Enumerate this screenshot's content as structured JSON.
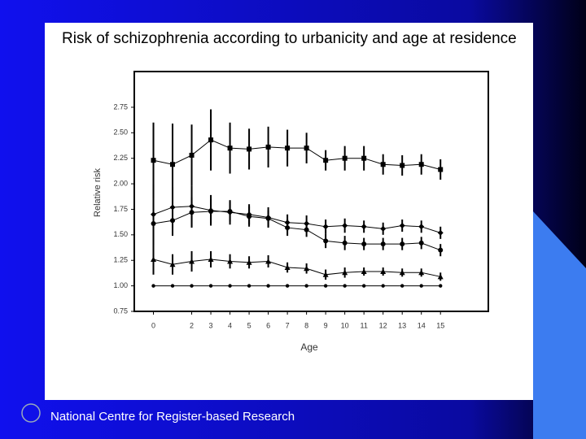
{
  "chart_data": {
    "type": "line",
    "title": "Risk of schizophrenia according to urbanicity and age at residence",
    "x_label": "Age",
    "y_label": "Relative risk",
    "footer": "National Centre for Register-based Research",
    "x": [
      0,
      1,
      2,
      3,
      4,
      5,
      6,
      7,
      8,
      9,
      10,
      11,
      12,
      13,
      14,
      15
    ],
    "xlim": [
      -1,
      17.5
    ],
    "xticks": [
      0,
      2,
      3,
      4,
      5,
      6,
      7,
      8,
      9,
      10,
      11,
      12,
      13,
      14,
      15
    ],
    "ylim": [
      0.75,
      3.1
    ],
    "yticks": [
      0.75,
      {
        "value": 1,
        "label": "1.00"
      },
      1.25,
      {
        "value": 1.5,
        "label": "1.50"
      },
      1.75,
      {
        "value": 2,
        "label": "2.00"
      },
      2.25,
      {
        "value": 2.5,
        "label": "2.50"
      },
      2.75
    ],
    "series": [
      {
        "color": "#000000",
        "marker": "square",
        "values": [
          2.23,
          2.19,
          2.28,
          2.43,
          2.35,
          2.34,
          2.36,
          2.35,
          2.35,
          2.23,
          2.25,
          2.25,
          2.19,
          2.18,
          2.19,
          2.14
        ],
        "errors": [
          0.37,
          0.4,
          0.3,
          0.3,
          0.25,
          0.2,
          0.2,
          0.18,
          0.15,
          0.1,
          0.12,
          0.12,
          0.1,
          0.1,
          0.1,
          0.1
        ]
      },
      {
        "color": "#000000",
        "marker": "diamond",
        "values": [
          1.7,
          1.77,
          1.78,
          1.74,
          1.72,
          1.7,
          1.67,
          1.62,
          1.61,
          1.58,
          1.59,
          1.58,
          1.56,
          1.59,
          1.58,
          1.52
        ],
        "errors": [
          0.3,
          0.2,
          0.2,
          0.15,
          0.12,
          0.1,
          0.1,
          0.08,
          0.08,
          0.07,
          0.07,
          0.06,
          0.06,
          0.06,
          0.06,
          0.06
        ]
      },
      {
        "color": "#000000",
        "marker": "circle",
        "values": [
          1.61,
          1.64,
          1.72,
          1.73,
          1.73,
          1.68,
          1.66,
          1.57,
          1.55,
          1.44,
          1.42,
          1.41,
          1.41,
          1.41,
          1.42,
          1.35
        ],
        "errors": [
          0.2,
          0.15,
          0.15,
          0.12,
          0.1,
          0.1,
          0.08,
          0.08,
          0.07,
          0.07,
          0.07,
          0.06,
          0.06,
          0.06,
          0.06,
          0.06
        ]
      },
      {
        "color": "#000000",
        "marker": "triangle",
        "values": [
          1.26,
          1.21,
          1.24,
          1.26,
          1.24,
          1.23,
          1.24,
          1.18,
          1.17,
          1.11,
          1.13,
          1.14,
          1.14,
          1.13,
          1.13,
          1.09
        ],
        "errors": [
          0.15,
          0.1,
          0.1,
          0.08,
          0.07,
          0.06,
          0.06,
          0.05,
          0.05,
          0.05,
          0.05,
          0.04,
          0.04,
          0.04,
          0.04,
          0.04
        ]
      },
      {
        "color": "#000000",
        "marker": "dot",
        "values": [
          1,
          1,
          1,
          1,
          1,
          1,
          1,
          1,
          1,
          1,
          1,
          1,
          1,
          1,
          1,
          1
        ]
      }
    ]
  }
}
